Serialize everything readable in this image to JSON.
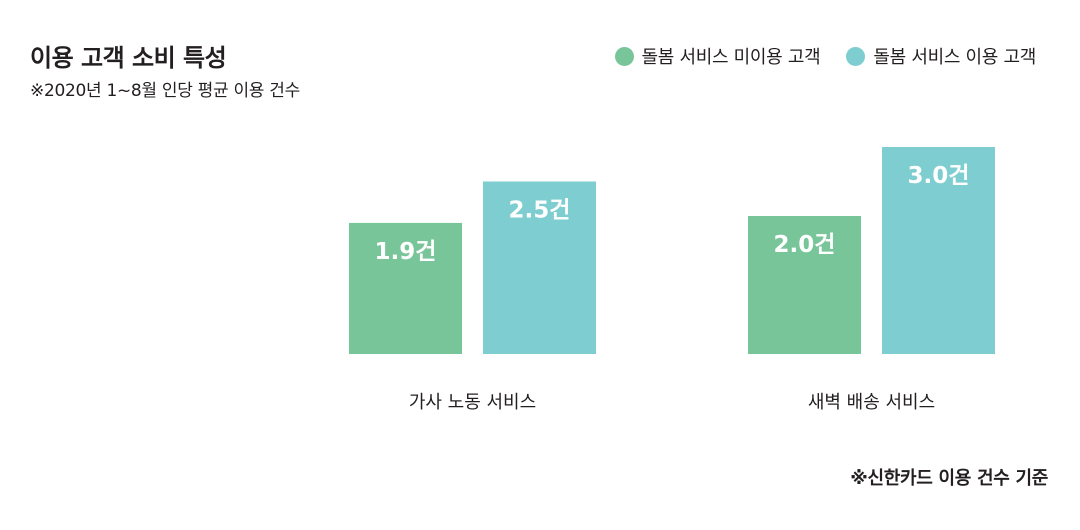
{
  "chart_data": {
    "type": "bar",
    "title": "이용 고객 소비 특성",
    "subtitle": "※2020년 1~8월 인당 평균 이용 건수",
    "categories": [
      "가사 노동 서비스",
      "새벽 배송 서비스"
    ],
    "series": [
      {
        "name": "돌봄 서비스 미이용 고객",
        "values": [
          1.9,
          2.0
        ],
        "labels": [
          "1.9건",
          "2.0건"
        ],
        "color": "#78c59a"
      },
      {
        "name": "돌봄 서비스 이용 고객",
        "values": [
          2.5,
          3.0
        ],
        "labels": [
          "2.5건",
          "3.0건"
        ],
        "color": "#7ecdd0"
      }
    ],
    "ylim": [
      0,
      3.0
    ],
    "grid": false,
    "legend_position": "top-right",
    "note": "※신한카드 이용 건수 기준"
  }
}
